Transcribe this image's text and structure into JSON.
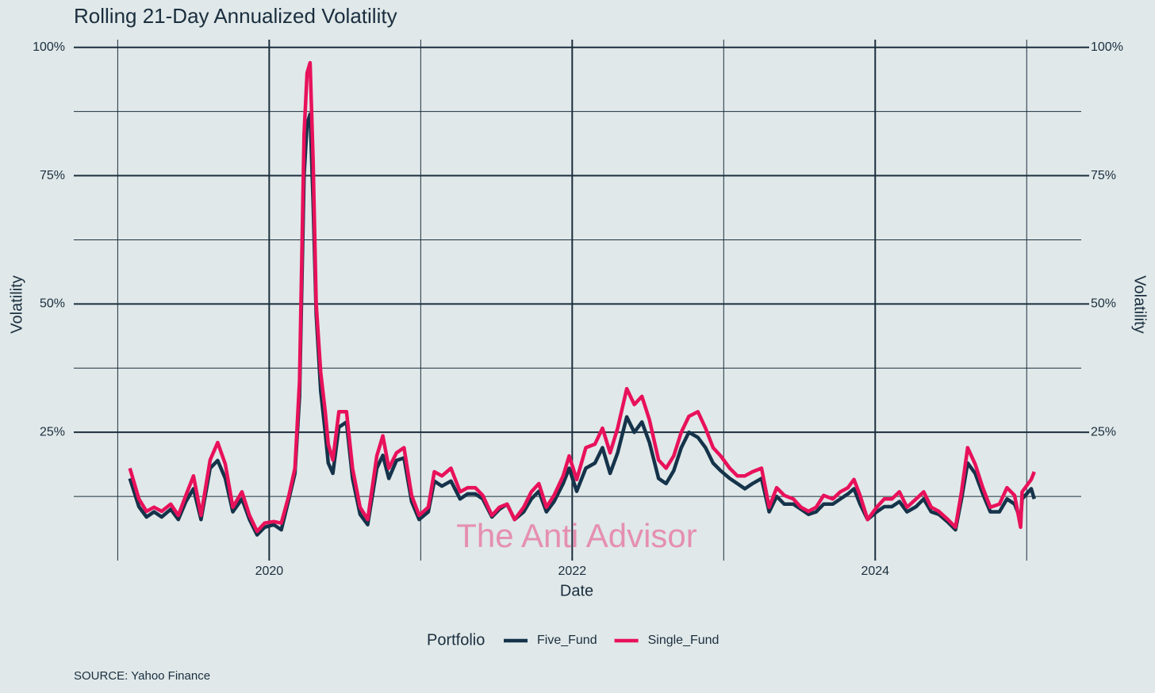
{
  "chart_data": {
    "type": "line",
    "title": "Rolling 21-Day Annualized Volatility",
    "xlabel": "Date",
    "ylabel": "Volatility",
    "y2label": "Volatility",
    "legend_title": "Portfolio",
    "watermark": "The Anti Advisor",
    "caption": "SOURCE: Yahoo Finance",
    "legend": "bottom",
    "grid": true,
    "xlim": [
      2018.71,
      2025.36
    ],
    "xticks": [
      2020,
      2022,
      2024
    ],
    "x_minor_ticks": [
      2019,
      2021,
      2023,
      2025
    ],
    "ylim": [
      0,
      101.5
    ],
    "yticks": [
      {
        "value": 25,
        "label": "25%"
      },
      {
        "value": 50,
        "label": "50%"
      },
      {
        "value": 75,
        "label": "75%"
      },
      {
        "value": 100,
        "label": "100%"
      }
    ],
    "y_minor_ticks": [
      12.5,
      37.5,
      62.5,
      87.5
    ],
    "y2lim": [
      0,
      101.5
    ],
    "y2ticks": [
      {
        "value": 25,
        "label": "25%"
      },
      {
        "value": 50,
        "label": "50%"
      },
      {
        "value": 75,
        "label": "75%"
      },
      {
        "value": 100,
        "label": "100%"
      }
    ],
    "x": [
      2019.08,
      2019.14,
      2019.19,
      2019.24,
      2019.29,
      2019.35,
      2019.4,
      2019.45,
      2019.5,
      2019.55,
      2019.61,
      2019.66,
      2019.71,
      2019.76,
      2019.82,
      2019.87,
      2019.92,
      2019.97,
      2020.03,
      2020.08,
      2020.13,
      2020.17,
      2020.2,
      2020.23,
      2020.25,
      2020.27,
      2020.29,
      2020.31,
      2020.34,
      2020.37,
      2020.39,
      2020.42,
      2020.46,
      2020.51,
      2020.55,
      2020.6,
      2020.65,
      2020.71,
      2020.75,
      2020.79,
      2020.84,
      2020.89,
      2020.94,
      2020.99,
      2021.05,
      2021.09,
      2021.14,
      2021.2,
      2021.26,
      2021.31,
      2021.36,
      2021.41,
      2021.47,
      2021.52,
      2021.57,
      2021.62,
      2021.68,
      2021.73,
      2021.78,
      2021.83,
      2021.88,
      2021.94,
      2021.98,
      2022.03,
      2022.09,
      2022.15,
      2022.2,
      2022.25,
      2022.3,
      2022.36,
      2022.41,
      2022.46,
      2022.51,
      2022.57,
      2022.62,
      2022.67,
      2022.72,
      2022.77,
      2022.83,
      2022.88,
      2022.93,
      2022.98,
      2023.04,
      2023.09,
      2023.14,
      2023.19,
      2023.25,
      2023.3,
      2023.35,
      2023.4,
      2023.46,
      2023.51,
      2023.56,
      2023.61,
      2023.66,
      2023.72,
      2023.77,
      2023.82,
      2023.86,
      2023.9,
      2023.95,
      2024.01,
      2024.06,
      2024.11,
      2024.16,
      2024.21,
      2024.27,
      2024.32,
      2024.37,
      2024.42,
      2024.48,
      2024.53,
      2024.57,
      2024.61,
      2024.66,
      2024.71,
      2024.76,
      2024.82,
      2024.87,
      2024.92,
      2024.96,
      2024.97,
      2025.03,
      2025.05
    ],
    "series": [
      {
        "name": "Five_Fund",
        "color": "#15334a",
        "values": [
          16,
          10.5,
          8.5,
          9.5,
          8.5,
          10,
          8,
          11.5,
          14,
          8,
          18,
          19.5,
          16,
          9.5,
          12,
          8,
          5,
          6.5,
          7,
          6,
          12,
          17,
          32,
          75,
          85,
          87,
          70,
          48,
          33,
          25,
          19,
          17,
          26,
          27,
          16,
          9,
          7,
          18,
          20.5,
          16,
          19.5,
          20,
          11.5,
          8,
          9.5,
          15.5,
          14.5,
          15.5,
          12,
          13,
          13,
          12,
          8.5,
          10,
          11,
          8,
          9.5,
          12,
          13.5,
          9.5,
          11.5,
          15,
          18,
          13.5,
          18,
          19,
          22,
          17,
          21,
          28,
          25,
          27,
          23,
          16,
          15,
          17.5,
          22,
          25,
          24,
          22,
          19,
          17.5,
          16,
          15,
          14,
          15,
          16,
          9.5,
          12.5,
          11,
          11,
          10,
          9,
          9.5,
          11,
          11,
          12,
          13,
          14,
          11,
          8,
          9.5,
          10.5,
          10.5,
          11.5,
          9.5,
          10.5,
          12,
          9.5,
          9,
          7.5,
          6,
          12,
          19,
          17,
          13,
          9.5,
          9.5,
          12,
          11,
          8,
          12,
          14,
          12
        ]
      },
      {
        "name": "Single_Fund",
        "color": "#e8115a",
        "values": [
          18,
          12,
          9.6,
          10.4,
          9.6,
          11,
          8.8,
          12.7,
          16.5,
          8.8,
          19.6,
          23,
          18.8,
          10.4,
          13.4,
          8.8,
          5.7,
          7.3,
          7.6,
          7.3,
          12.7,
          18,
          35,
          83,
          95,
          97,
          78,
          50,
          36.6,
          29,
          22.7,
          19.6,
          29,
          29,
          18,
          10.4,
          8,
          20.4,
          24.3,
          18,
          21,
          22,
          12.7,
          8.8,
          10.4,
          17.3,
          16.5,
          18,
          13.4,
          14.2,
          14.2,
          12.7,
          8.8,
          10.4,
          11,
          8,
          10.4,
          13.4,
          15,
          10.4,
          12.7,
          16.5,
          20.4,
          15.8,
          22,
          22.7,
          25.8,
          21,
          25.8,
          33.5,
          30.4,
          32,
          27.4,
          19.6,
          18,
          20.4,
          25,
          28.1,
          29,
          25.8,
          22,
          20.4,
          18,
          16.5,
          16.5,
          17.3,
          18,
          10.4,
          14.2,
          12.7,
          12,
          10.4,
          9.6,
          10.4,
          12.7,
          12,
          13.4,
          14.2,
          15.8,
          12.7,
          8,
          10.4,
          12,
          12,
          13.4,
          10.4,
          12,
          13.4,
          10.4,
          9.6,
          8,
          6.5,
          13.4,
          22,
          18.8,
          14.2,
          10.4,
          11,
          14.2,
          12.7,
          6.5,
          13.4,
          15.8,
          17.3
        ]
      }
    ]
  }
}
